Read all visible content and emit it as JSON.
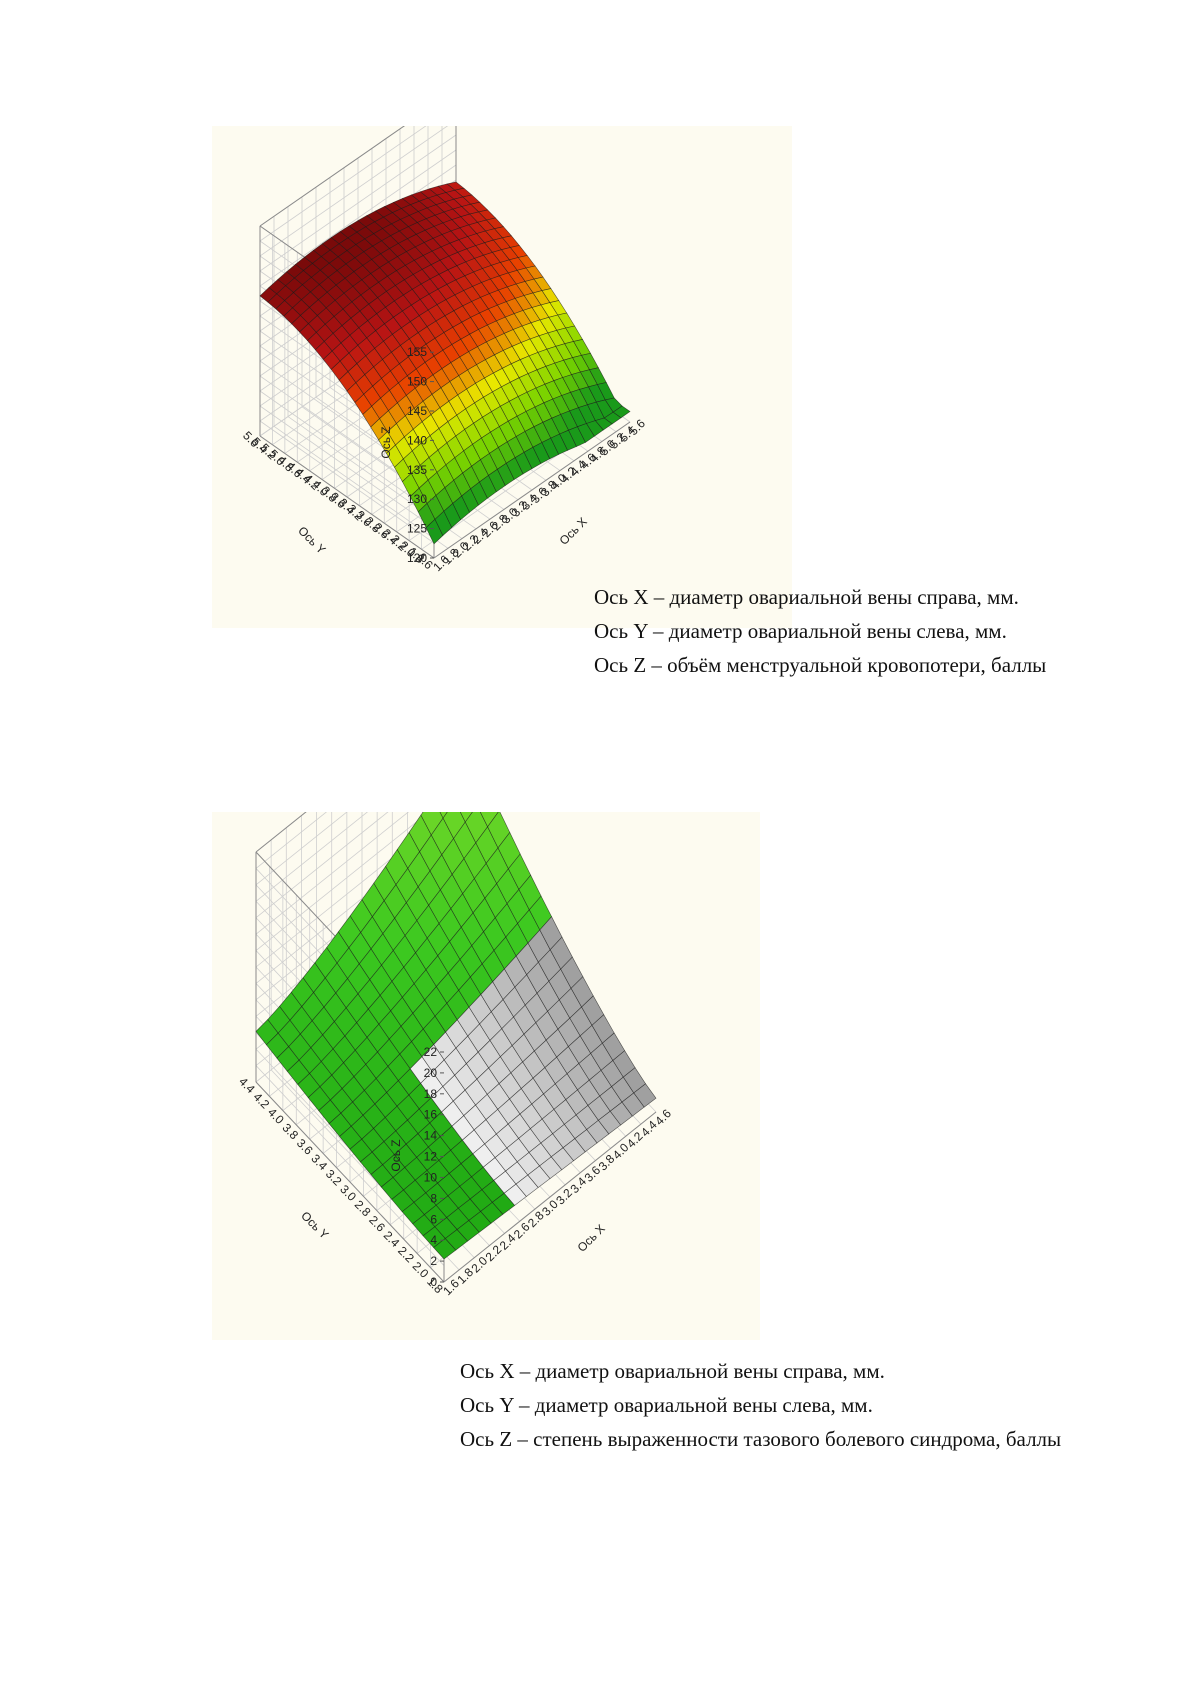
{
  "chart_data": [
    {
      "type": "surface3d",
      "title": "",
      "zlabel": "Ось Z",
      "xlabel": "Ось X",
      "ylabel": "Ось Y",
      "z_ticks": [
        "155",
        "150",
        "145",
        "140",
        "135",
        "130",
        "125",
        "120"
      ],
      "x_ticks": [
        "1.6",
        "1.8",
        "2.0",
        "2.2",
        "2.4",
        "2.6",
        "2.8",
        "3.0",
        "3.2",
        "3.4",
        "3.6",
        "3.8",
        "4.0",
        "4.2",
        "4.4",
        "4.6",
        "4.8",
        "5.0",
        "5.2",
        "5.4",
        "5.6"
      ],
      "y_ticks": [
        "5.6",
        "5.4",
        "5.2",
        "5.0",
        "4.8",
        "4.6",
        "4.4",
        "4.2",
        "4.0",
        "3.8",
        "3.6",
        "3.4",
        "3.2",
        "3.0",
        "2.8",
        "2.6",
        "2.4",
        "2.2",
        "2.0",
        "1.8",
        "1.6"
      ],
      "zlim": [
        120,
        155
      ],
      "colormap": [
        "#1a9a1a",
        "#7cd400",
        "#e8e800",
        "#e84000",
        "#b81414",
        "#7a0a0a"
      ],
      "surface": "dome"
    },
    {
      "type": "surface3d",
      "title": "",
      "zlabel": "Ось Z",
      "xlabel": "Ось X",
      "ylabel": "Ось Y",
      "z_ticks": [
        "22",
        "20",
        "18",
        "16",
        "14",
        "12",
        "10",
        "8",
        "6",
        "4",
        "2",
        "0"
      ],
      "x_ticks": [
        "1.6",
        "1.8",
        "2.0",
        "2.2",
        "2.4",
        "2.6",
        "2.8",
        "3.0",
        "3.2",
        "3.4",
        "3.6",
        "3.8",
        "4.0",
        "4.2",
        "4.4",
        "4.6"
      ],
      "y_ticks": [
        "4.4",
        "4.2",
        "4.0",
        "3.8",
        "3.6",
        "3.4",
        "3.2",
        "3.0",
        "2.8",
        "2.6",
        "2.4",
        "2.2",
        "2.0",
        "1.8"
      ],
      "zlim": [
        0,
        22
      ],
      "colormap": [
        "#d8d8d8",
        "#2fbf10",
        "#6fd620"
      ],
      "surface": "saddle"
    }
  ],
  "legend1": {
    "x": "Ось X – диаметр овариальной вены справа, мм.",
    "y": "Ось Y – диаметр овариальной вены слева, мм.",
    "z": "Ось Z – объём менструальной кровопотери, баллы"
  },
  "legend2": {
    "x": "Ось X – диаметр овариальной вены справа, мм.",
    "y": "Ось Y – диаметр овариальной вены слева, мм.",
    "z": "Ось Z – степень выраженности тазового болевого синдрома, баллы"
  }
}
